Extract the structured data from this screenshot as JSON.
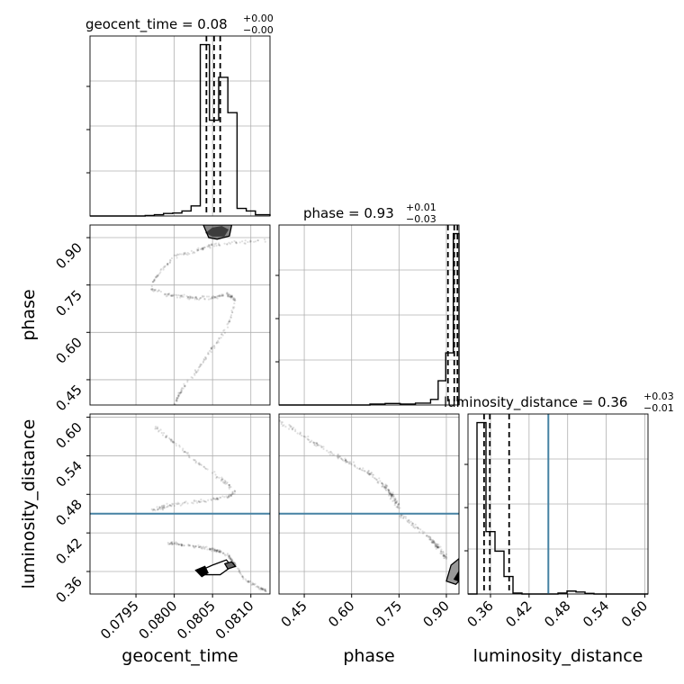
{
  "chart_data": {
    "type": "scatter",
    "subtype": "corner-plot",
    "parameters": [
      "geocent_time",
      "phase",
      "luminosity_distance"
    ],
    "titles": [
      {
        "param": "geocent_time",
        "text": "geocent_time = 0.08",
        "sup": "+0.00",
        "sub": "−0.00"
      },
      {
        "param": "phase",
        "text": "phase = 0.93",
        "sup": "+0.01",
        "sub": "−0.03"
      },
      {
        "param": "luminosity_distance",
        "text": "luminosity_distance = 0.36",
        "sup": "+0.03",
        "sub": "−0.01"
      }
    ],
    "axis_labels": {
      "x": [
        "geocent_time",
        "phase",
        "luminosity_distance"
      ],
      "y": [
        "phase",
        "luminosity_distance"
      ]
    },
    "ranges": {
      "geocent_time": [
        0.0789,
        0.08125
      ],
      "phase": [
        0.37,
        0.94
      ],
      "luminosity_distance": [
        0.325,
        0.605
      ]
    },
    "ticks": {
      "geocent_time": [
        "0.0795",
        "0.0800",
        "0.0805",
        "0.0810"
      ],
      "phase": [
        "0.45",
        "0.60",
        "0.75",
        "0.90"
      ],
      "luminosity_distance": [
        "0.36",
        "0.42",
        "0.48",
        "0.54",
        "0.60"
      ]
    },
    "truth": {
      "luminosity_distance": 0.45
    },
    "quantiles": {
      "geocent_time": [
        0.08042,
        0.08052,
        0.0806
      ],
      "phase": [
        0.905,
        0.925,
        0.935
      ],
      "luminosity_distance": [
        0.35,
        0.359,
        0.389
      ]
    },
    "histograms": {
      "geocent_time": {
        "bins": [
          0.0789,
          0.07902,
          0.07914,
          0.07926,
          0.07938,
          0.0795,
          0.07962,
          0.07974,
          0.07986,
          0.07998,
          0.0801,
          0.08022,
          0.08034,
          0.08046,
          0.08058,
          0.0807,
          0.08082,
          0.08094,
          0.08106,
          0.08118,
          0.08125
        ],
        "counts": [
          0,
          0,
          0,
          0,
          0,
          0,
          0.2,
          0.5,
          1,
          1.2,
          2,
          4,
          68,
          38,
          55,
          41,
          3,
          2,
          0.5,
          0.5
        ]
      },
      "phase": {
        "bins": [
          0.37,
          0.418,
          0.466,
          0.514,
          0.562,
          0.61,
          0.658,
          0.706,
          0.754,
          0.802,
          0.85,
          0.874,
          0.898,
          0.922,
          0.94
        ],
        "counts": [
          0,
          0,
          0,
          0,
          0,
          0,
          0.5,
          0.8,
          0.5,
          1,
          3,
          13,
          28,
          92
        ]
      },
      "luminosity_distance": {
        "bins": [
          0.325,
          0.339,
          0.353,
          0.367,
          0.381,
          0.395,
          0.409,
          0.423,
          0.437,
          0.451,
          0.465,
          0.479,
          0.493,
          0.507,
          0.521,
          0.535,
          0.549,
          0.563,
          0.577,
          0.591,
          0.605
        ],
        "counts": [
          0,
          88,
          32,
          22,
          9,
          0.5,
          0,
          0,
          0,
          0,
          0.5,
          1.5,
          1,
          0.3,
          0,
          0,
          0,
          0,
          0,
          0
        ]
      }
    }
  }
}
